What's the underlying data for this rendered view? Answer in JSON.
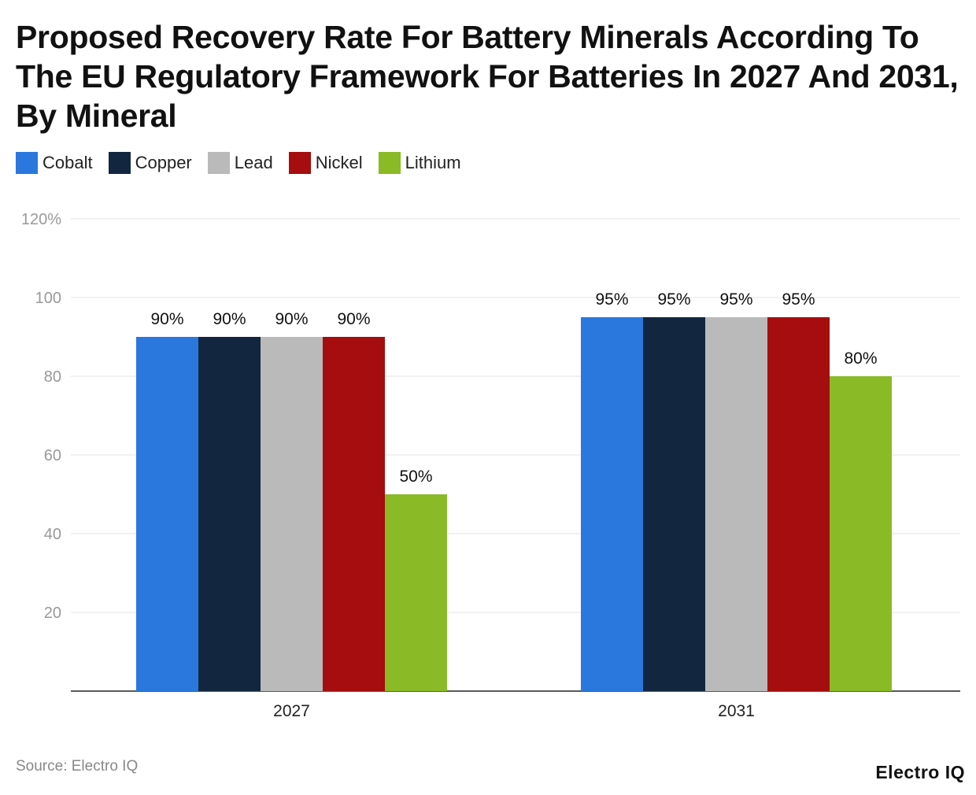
{
  "chart_data": {
    "type": "bar",
    "title": "Proposed Recovery Rate For Battery Minerals According To The EU Regulatory Framework For Batteries In 2027 And 2031, By Mineral",
    "categories": [
      "2027",
      "2031"
    ],
    "series": [
      {
        "name": "Cobalt",
        "color": "#2a78dd",
        "values": [
          90,
          95
        ]
      },
      {
        "name": "Copper",
        "color": "#12263f",
        "values": [
          90,
          95
        ]
      },
      {
        "name": "Lead",
        "color": "#bababa",
        "values": [
          90,
          95
        ]
      },
      {
        "name": "Nickel",
        "color": "#a50d0e",
        "values": [
          90,
          95
        ]
      },
      {
        "name": "Lithium",
        "color": "#8aba25",
        "values": [
          50,
          80
        ]
      }
    ],
    "data_labels": [
      [
        "90%",
        "95%"
      ],
      [
        "90%",
        "95%"
      ],
      [
        "90%",
        "95%"
      ],
      [
        "90%",
        "95%"
      ],
      [
        "50%",
        "80%"
      ]
    ],
    "ylim": [
      0,
      120
    ],
    "yticks": [
      "20",
      "40",
      "60",
      "80",
      "100",
      "120%"
    ],
    "ytick_values": [
      20,
      40,
      60,
      80,
      100,
      120
    ],
    "grid": true,
    "legend": "top-left"
  },
  "footer": {
    "source": "Source: Electro IQ",
    "logo": "Electro IQ"
  }
}
